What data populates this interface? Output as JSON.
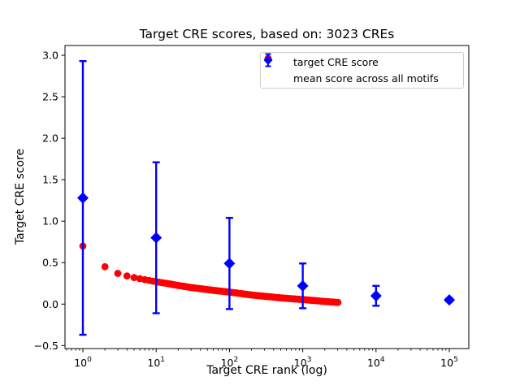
{
  "figure": {
    "title": "Target CRE scores, based on: 3023 CREs",
    "xlabel": "Target CRE rank (log)",
    "ylabel": "Target CRE score"
  },
  "legend": {
    "position": "upper right",
    "items": [
      {
        "label": "target CRE score",
        "marker": "red-circle",
        "color": "#ff0000"
      },
      {
        "label": "mean score across all motifs",
        "marker": "blue-diamond-errorbar",
        "color": "#0000ff"
      }
    ]
  },
  "chart_data": {
    "type": "scatter",
    "title": "Target CRE scores, based on: 3023 CREs",
    "xlabel": "Target CRE rank (log)",
    "ylabel": "Target CRE score",
    "x_scale": "log",
    "grid": false,
    "n_cres": 3023,
    "xlim_log10": [
      -0.244,
      5.266
    ],
    "ylim": [
      -0.536,
      3.118
    ],
    "x_major_tick_exponents": [
      0,
      1,
      2,
      3,
      4,
      5
    ],
    "y_ticks": [
      3.0,
      2.5,
      2.0,
      1.5,
      1.0,
      0.5,
      0.0,
      -0.5
    ],
    "series": [
      {
        "name": "target CRE score",
        "marker": "circle",
        "color": "#ff0000",
        "n_points_depicted": 3023,
        "max_rank": 3023,
        "key_points": [
          [
            1,
            0.7
          ],
          [
            2,
            0.45
          ],
          [
            3,
            0.37
          ],
          [
            4,
            0.34
          ],
          [
            5,
            0.32
          ],
          [
            7,
            0.295
          ],
          [
            10,
            0.27
          ],
          [
            15,
            0.245
          ],
          [
            20,
            0.225
          ],
          [
            30,
            0.2
          ],
          [
            50,
            0.175
          ],
          [
            70,
            0.16
          ],
          [
            100,
            0.145
          ],
          [
            150,
            0.125
          ],
          [
            200,
            0.11
          ],
          [
            300,
            0.095
          ],
          [
            500,
            0.075
          ],
          [
            700,
            0.065
          ],
          [
            1000,
            0.055
          ],
          [
            1500,
            0.042
          ],
          [
            2000,
            0.032
          ],
          [
            2500,
            0.026
          ],
          [
            3023,
            0.02
          ]
        ]
      },
      {
        "name": "mean score across all motifs",
        "marker": "diamond",
        "color": "#0000ff",
        "points": [
          {
            "x": 1,
            "mean": 1.28,
            "err": 1.65
          },
          {
            "x": 10,
            "mean": 0.8,
            "err": 0.91
          },
          {
            "x": 100,
            "mean": 0.49,
            "err": 0.55
          },
          {
            "x": 1000,
            "mean": 0.22,
            "err": 0.27
          },
          {
            "x": 10000,
            "mean": 0.1,
            "err": 0.12
          },
          {
            "x": 100000,
            "mean": 0.05,
            "err": 0.02
          }
        ]
      }
    ]
  }
}
